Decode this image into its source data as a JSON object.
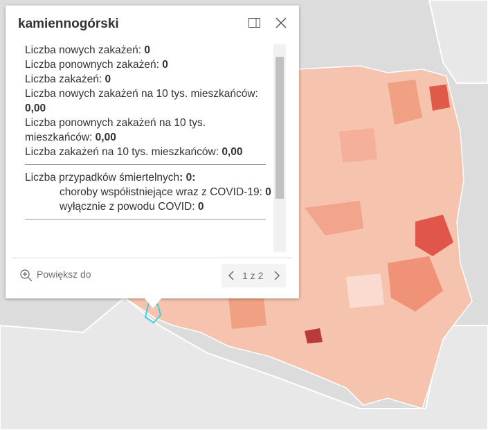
{
  "popup": {
    "title": "kamiennogórski",
    "stats": [
      {
        "label": "Liczba nowych zakażeń:",
        "value": "0"
      },
      {
        "label": "Liczba ponownych zakażeń:",
        "value": "0"
      },
      {
        "label": "Liczba zakażeń:",
        "value": "0"
      },
      {
        "label": "Liczba nowych zakażeń na 10 tys. mieszkańców:",
        "value": "0,00"
      },
      {
        "label": "Liczba ponownych zakażeń na 10 tys. mieszkańców:",
        "value": "0,00"
      },
      {
        "label": "Liczba zakażeń na 10 tys. mieszkańców:",
        "value": "0,00"
      }
    ],
    "deaths": {
      "label": "Liczba przypadków śmiertelnych",
      "value": ": 0:",
      "items": [
        {
          "label": "choroby współistniejące wraz z COVID-19:",
          "value": "0"
        },
        {
          "label": "wyłącznie z powodu COVID:",
          "value": "0"
        }
      ]
    },
    "zoom": "Powiększ do",
    "pager": "1 z 2"
  }
}
